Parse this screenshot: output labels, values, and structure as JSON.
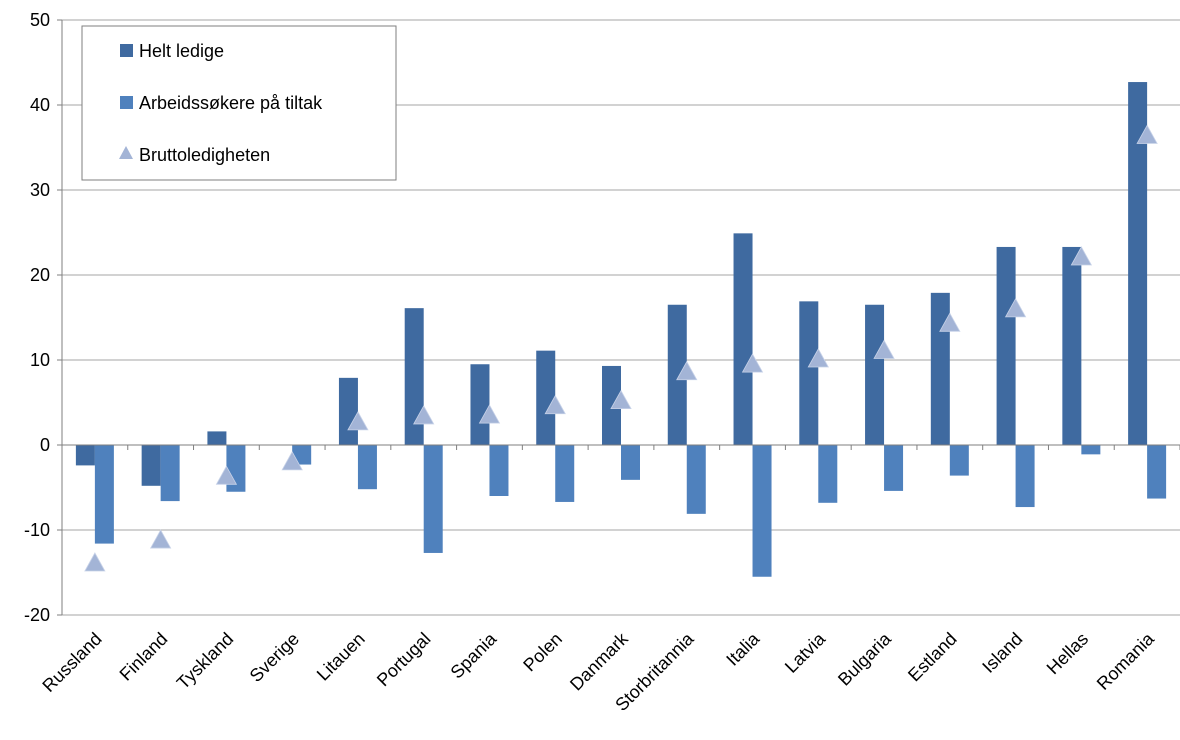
{
  "chart_data": {
    "type": "bar",
    "categories": [
      "Russland",
      "Finland",
      "Tyskland",
      "Sverige",
      "Litauen",
      "Portugal",
      "Spania",
      "Polen",
      "Danmark",
      "Storbritannia",
      "Italia",
      "Latvia",
      "Bulgaria",
      "Estland",
      "Island",
      "Hellas",
      "Romania"
    ],
    "series": [
      {
        "name": "Helt ledige",
        "kind": "bar",
        "color": "#3f6aa0",
        "values": [
          -2.4,
          -4.8,
          1.6,
          0.0,
          7.9,
          16.1,
          9.5,
          11.1,
          9.3,
          16.5,
          24.9,
          16.9,
          16.5,
          17.9,
          23.3,
          23.3,
          42.7
        ]
      },
      {
        "name": "Arbeidssøkere på tiltak",
        "kind": "bar",
        "color": "#4f81bd",
        "values": [
          -11.6,
          -6.6,
          -5.5,
          -2.3,
          -5.2,
          -12.7,
          -6.0,
          -6.7,
          -4.1,
          -8.1,
          -15.5,
          -6.8,
          -5.4,
          -3.6,
          -7.3,
          -1.1,
          -6.3
        ]
      },
      {
        "name": "Bruttoledigheten",
        "kind": "marker",
        "color": "#a3b4d6",
        "values": [
          -14.0,
          -11.3,
          -3.8,
          -2.1,
          2.6,
          3.3,
          3.4,
          4.5,
          5.1,
          8.5,
          9.4,
          10.0,
          11.0,
          14.2,
          15.9,
          22.0,
          36.3
        ]
      }
    ],
    "yticks": [
      -20,
      -10,
      0,
      10,
      20,
      30,
      40,
      50
    ],
    "ylim": [
      -20,
      50
    ],
    "grid": true,
    "legend_position": "top-left",
    "title": "",
    "xlabel": "",
    "ylabel": ""
  }
}
